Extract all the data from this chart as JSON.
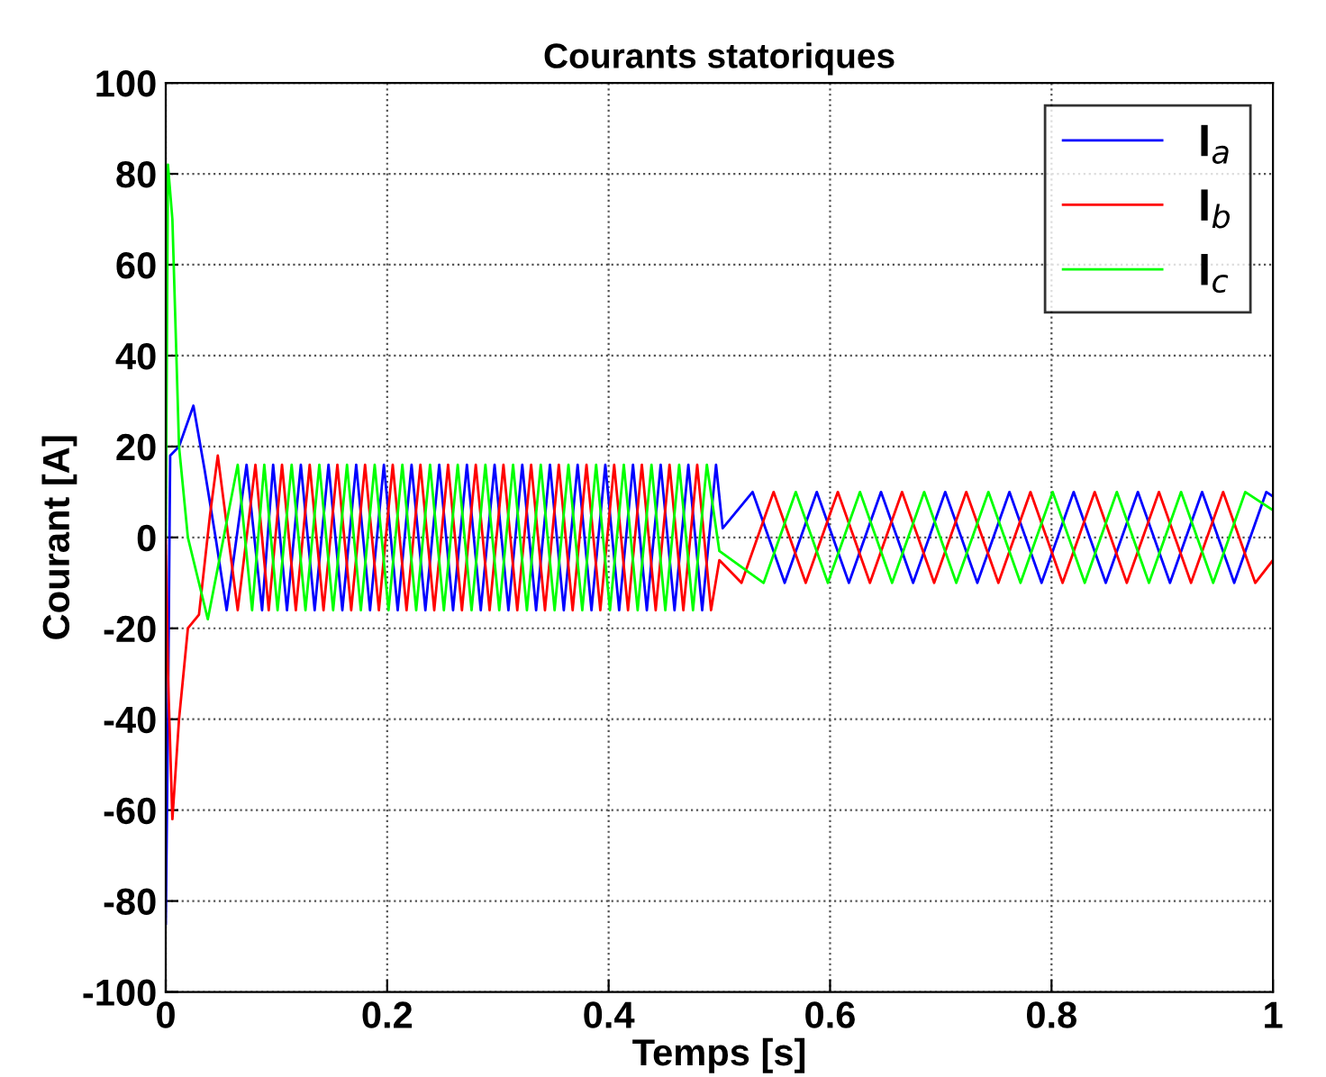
{
  "chart_data": {
    "type": "line",
    "title": "Courants statoriques",
    "xlabel": "Temps [s]",
    "ylabel": "Courant [A]",
    "xlim": [
      0,
      1
    ],
    "ylim": [
      -100,
      100
    ],
    "xticks": [
      0,
      0.2,
      0.4,
      0.6,
      0.8,
      1
    ],
    "yticks": [
      -100,
      -80,
      -60,
      -40,
      -20,
      0,
      20,
      40,
      60,
      80,
      100
    ],
    "grid": true,
    "legend": "top right",
    "line_style": "solid",
    "series": [
      {
        "name": "I$_{a}$",
        "color": "#0000ff",
        "x": [
          0,
          0.002,
          0.004,
          0.012,
          0.025,
          0.035,
          0.045,
          0.055,
          0.073,
          0.087,
          0.097,
          0.1095,
          0.122,
          0.1345,
          0.147,
          0.1595,
          0.172,
          0.1845,
          0.197,
          0.2095,
          0.222,
          0.2345,
          0.247,
          0.2595,
          0.272,
          0.2845,
          0.297,
          0.3095,
          0.322,
          0.3345,
          0.347,
          0.3595,
          0.372,
          0.3845,
          0.397,
          0.4095,
          0.422,
          0.4345,
          0.447,
          0.4595,
          0.472,
          0.4845,
          0.497,
          0.503,
          0.53,
          0.559,
          0.588,
          0.617,
          0.646,
          0.675,
          0.704,
          0.733,
          0.762,
          0.791,
          0.82,
          0.849,
          0.878,
          0.907,
          0.936,
          0.965,
          0.994,
          1.0
        ],
        "values": [
          -85,
          -40,
          18,
          20,
          29,
          15,
          0,
          -16,
          16,
          -16,
          16,
          -16,
          16,
          -16,
          16,
          -16,
          16,
          -16,
          16,
          -16,
          16,
          -16,
          16,
          -16,
          16,
          -16,
          16,
          -16,
          16,
          -16,
          16,
          -16,
          16,
          -16,
          16,
          -16,
          16,
          -16,
          16,
          -16,
          16,
          -16,
          16,
          2,
          10,
          -10,
          10,
          -10,
          10,
          -10,
          10,
          -10,
          10,
          -10,
          10,
          -10,
          10,
          -10,
          10,
          -10,
          10,
          9
        ]
      },
      {
        "name": "I$_{b}$",
        "color": "#ff0000",
        "x": [
          0,
          0.002,
          0.006,
          0.012,
          0.02,
          0.03,
          0.04,
          0.047,
          0.065,
          0.081,
          0.093,
          0.105,
          0.1175,
          0.13,
          0.1425,
          0.155,
          0.1675,
          0.18,
          0.1925,
          0.205,
          0.2175,
          0.23,
          0.2425,
          0.255,
          0.2675,
          0.28,
          0.2925,
          0.305,
          0.3175,
          0.33,
          0.3425,
          0.355,
          0.3675,
          0.38,
          0.3925,
          0.405,
          0.4175,
          0.43,
          0.4425,
          0.455,
          0.4675,
          0.48,
          0.4925,
          0.5,
          0.52,
          0.549,
          0.578,
          0.607,
          0.636,
          0.665,
          0.694,
          0.723,
          0.752,
          0.781,
          0.81,
          0.839,
          0.868,
          0.897,
          0.926,
          0.955,
          0.984,
          1.0
        ],
        "values": [
          0,
          -30,
          -62,
          -40,
          -20,
          -17,
          5,
          18,
          -16,
          16,
          -16,
          16,
          -16,
          16,
          -16,
          16,
          -16,
          16,
          -16,
          16,
          -16,
          16,
          -16,
          16,
          -16,
          16,
          -16,
          16,
          -16,
          16,
          -16,
          16,
          -16,
          16,
          -16,
          16,
          -16,
          16,
          -16,
          16,
          -16,
          16,
          -16,
          -5,
          -10,
          10,
          -10,
          10,
          -10,
          10,
          -10,
          10,
          -10,
          10,
          -10,
          10,
          -10,
          10,
          -10,
          10,
          -10,
          -5
        ]
      },
      {
        "name": "I$_{c}$",
        "color": "#00ff00",
        "x": [
          0,
          0.002,
          0.006,
          0.012,
          0.02,
          0.03,
          0.038,
          0.065,
          0.078,
          0.089,
          0.101,
          0.1137,
          0.1262,
          0.1387,
          0.1512,
          0.1637,
          0.1762,
          0.1887,
          0.2012,
          0.2137,
          0.2262,
          0.2387,
          0.2512,
          0.2637,
          0.2762,
          0.2887,
          0.3012,
          0.3137,
          0.3262,
          0.3387,
          0.3512,
          0.3637,
          0.3762,
          0.3887,
          0.4012,
          0.4137,
          0.4262,
          0.4387,
          0.4512,
          0.4637,
          0.4762,
          0.4887,
          0.5,
          0.54,
          0.569,
          0.598,
          0.627,
          0.656,
          0.685,
          0.714,
          0.743,
          0.772,
          0.801,
          0.83,
          0.859,
          0.888,
          0.917,
          0.946,
          0.975,
          1.0
        ],
        "values": [
          0,
          82,
          70,
          20,
          0,
          -10,
          -18,
          16,
          -16,
          16,
          -16,
          16,
          -16,
          16,
          -16,
          16,
          -16,
          16,
          -16,
          16,
          -16,
          16,
          -16,
          16,
          -16,
          16,
          -16,
          16,
          -16,
          16,
          -16,
          16,
          -16,
          16,
          -16,
          16,
          -16,
          16,
          -16,
          16,
          -16,
          16,
          -3,
          -10,
          10,
          -10,
          10,
          -10,
          10,
          -10,
          10,
          -10,
          10,
          -10,
          10,
          -10,
          10,
          -10,
          10,
          6
        ]
      }
    ]
  }
}
